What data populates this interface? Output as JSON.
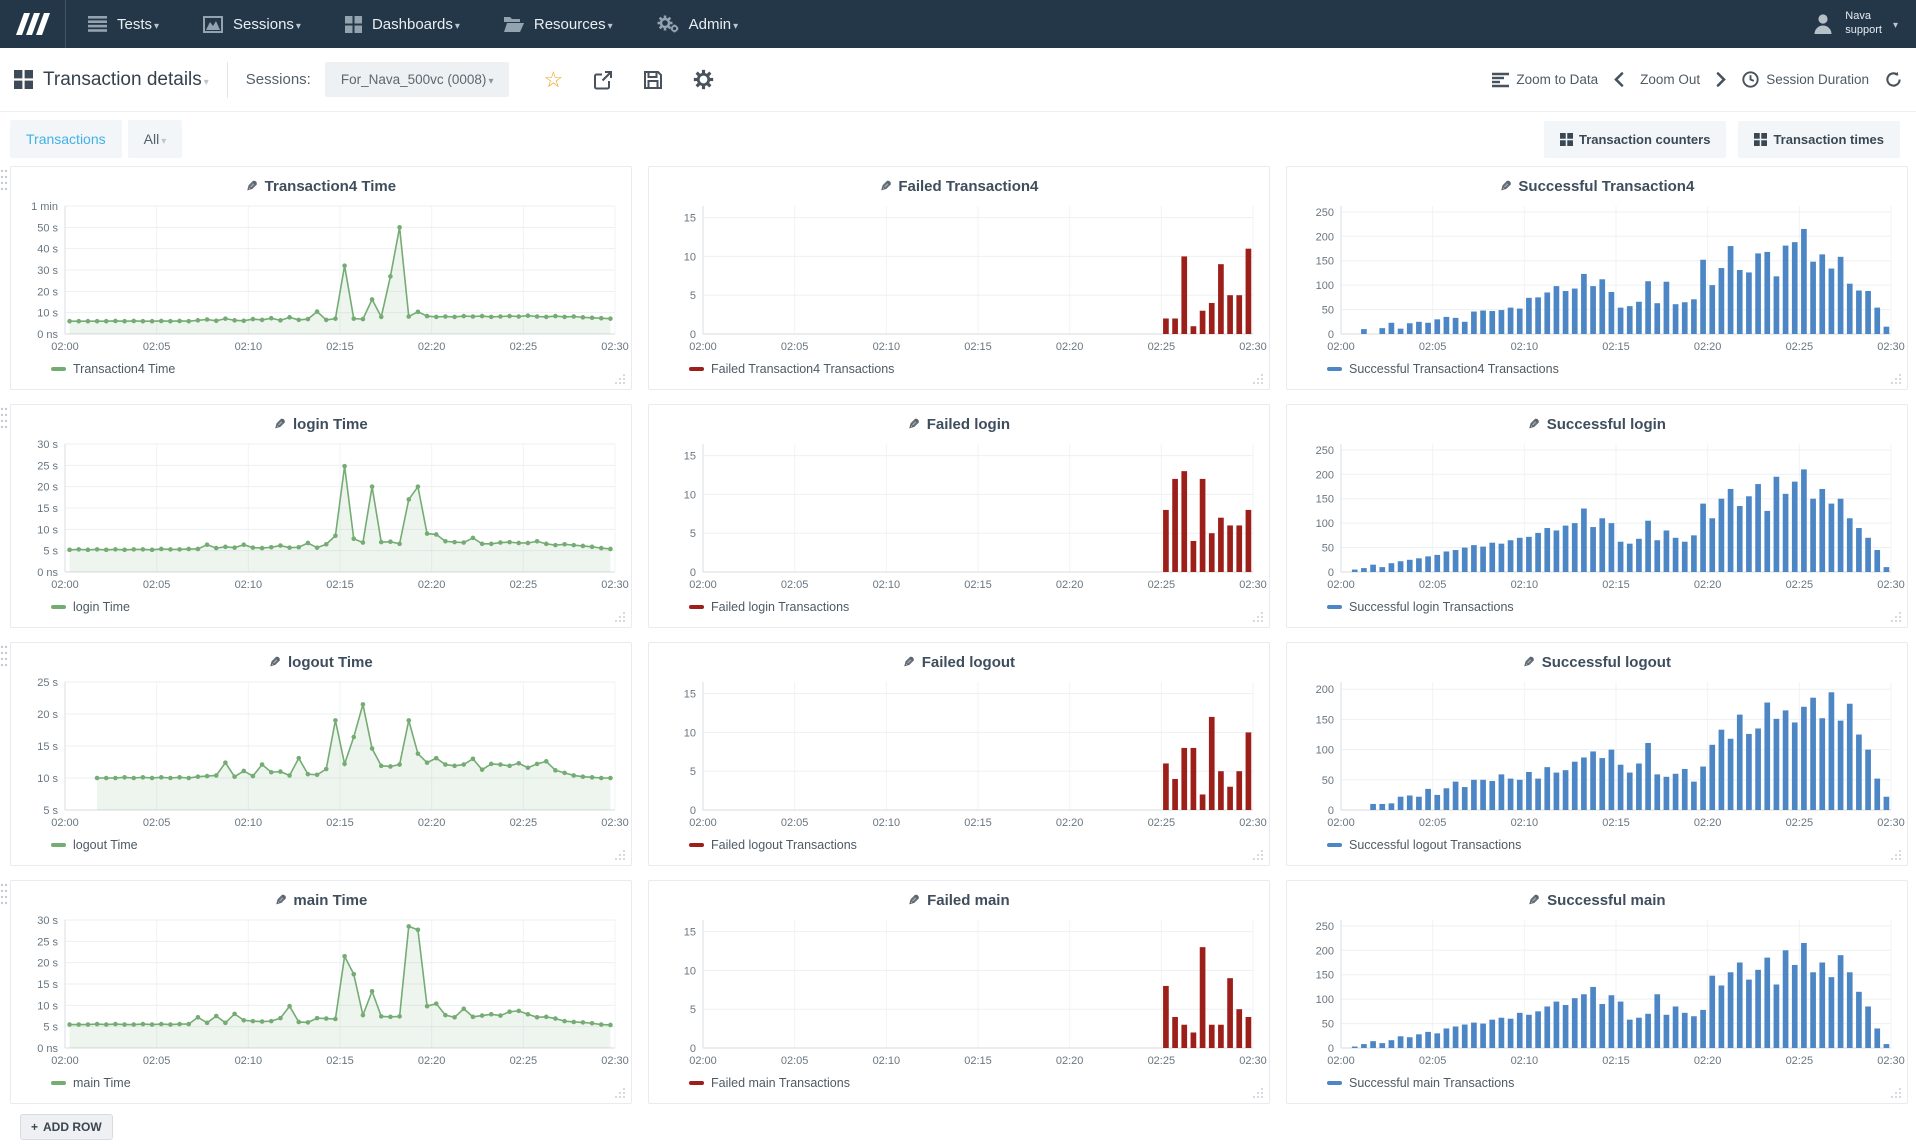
{
  "navbar": {
    "menus": [
      {
        "id": "tests",
        "label": "Tests"
      },
      {
        "id": "sessions",
        "label": "Sessions"
      },
      {
        "id": "dashboards",
        "label": "Dashboards"
      },
      {
        "id": "resources",
        "label": "Resources"
      },
      {
        "id": "admin",
        "label": "Admin"
      }
    ],
    "user": {
      "line1": "Nava",
      "line2": "support"
    }
  },
  "toolbar": {
    "title": "Transaction details",
    "sessions_label": "Sessions:",
    "session_value": "For_Nava_500vc (0008)",
    "zoom_to_data": "Zoom to Data",
    "zoom_out": "Zoom Out",
    "session_duration": "Session Duration"
  },
  "tabs": {
    "transactions": "Transactions",
    "filter_all": "All",
    "transaction_counters": "Transaction counters",
    "transaction_times": "Transaction times"
  },
  "footer": {
    "add_row": "ADD ROW"
  },
  "colors": {
    "green": "#74ac74",
    "red": "#9c1f1a",
    "blue": "#4d86c5",
    "navbar": "#243748"
  },
  "chart_data": [
    {
      "type": "line",
      "title": "Transaction4 Time",
      "legend": "Transaction4 Time",
      "color": "#74ac74",
      "ylim": [
        0,
        60
      ],
      "ytick_values": [
        60,
        50,
        40,
        30,
        20,
        10,
        0
      ],
      "ytick_labels": [
        "1 min",
        "50 s",
        "40 s",
        "30 s",
        "20 s",
        "10 s",
        "0 ns"
      ],
      "x_ticks": [
        "02:00",
        "02:05",
        "02:10",
        "02:15",
        "02:20",
        "02:25",
        "02:30"
      ],
      "interval_seconds": 30,
      "values": [
        6,
        6,
        6,
        6,
        6,
        6.1,
        6,
        6.1,
        6,
        6,
        6.1,
        6,
        6.1,
        6,
        6.4,
        6.8,
        6.2,
        7.2,
        6.4,
        6.2,
        7,
        6.6,
        7.4,
        6.4,
        7.8,
        6.6,
        7,
        10.5,
        6.6,
        7.2,
        32,
        7.2,
        7,
        16.2,
        8,
        27,
        50,
        8.2,
        10.4,
        8.4,
        8,
        8.2,
        8,
        8.4,
        8.2,
        8.4,
        8,
        8.2,
        8.4,
        8.2,
        8.6,
        8.2,
        8,
        8.4,
        8,
        8.2,
        7.8,
        7.6,
        7.4,
        7.2
      ]
    },
    {
      "type": "bar",
      "title": "Failed Transaction4",
      "legend": "Failed Transaction4 Transactions",
      "color": "#9c1f1a",
      "ylim": [
        0,
        16.5
      ],
      "ytick_values": [
        15,
        10,
        5,
        0
      ],
      "ytick_labels": [
        "15",
        "10",
        "5",
        "0"
      ],
      "x_ticks": [
        "02:00",
        "02:05",
        "02:10",
        "02:15",
        "02:20",
        "02:25",
        "02:30"
      ],
      "interval_seconds": 30,
      "values": [
        0,
        0,
        0,
        0,
        0,
        0,
        0,
        0,
        0,
        0,
        0,
        0,
        0,
        0,
        0,
        0,
        0,
        0,
        0,
        0,
        0,
        0,
        0,
        0,
        0,
        0,
        0,
        0,
        0,
        0,
        0,
        0,
        0,
        0,
        0,
        0,
        0,
        0,
        0,
        0,
        0,
        0,
        0,
        0,
        0,
        0,
        0,
        0,
        0,
        0,
        2,
        2,
        10,
        1,
        3,
        4,
        9,
        5,
        5,
        11
      ]
    },
    {
      "type": "bar",
      "title": "Successful Transaction4",
      "legend": "Successful Transaction4 Transactions",
      "color": "#4d86c5",
      "ylim": [
        0,
        262
      ],
      "ytick_values": [
        250,
        200,
        150,
        100,
        50,
        0
      ],
      "ytick_labels": [
        "250",
        "200",
        "150",
        "100",
        "50",
        "0"
      ],
      "x_ticks": [
        "02:00",
        "02:05",
        "02:10",
        "02:15",
        "02:20",
        "02:25",
        "02:30"
      ],
      "interval_seconds": 30,
      "values": [
        0,
        0,
        10,
        0,
        12,
        23,
        11,
        22,
        25,
        23,
        30,
        35,
        33,
        25,
        46,
        48,
        47,
        49,
        54,
        52,
        74,
        75,
        85,
        98,
        88,
        93,
        123,
        98,
        112,
        86,
        54,
        57,
        66,
        108,
        63,
        107,
        61,
        65,
        71,
        152,
        100,
        135,
        180,
        131,
        126,
        165,
        168,
        118,
        181,
        188,
        215,
        148,
        163,
        134,
        158,
        103,
        89,
        88,
        54,
        15
      ]
    },
    {
      "type": "line",
      "title": "login Time",
      "legend": "login Time",
      "color": "#74ac74",
      "ylim": [
        0,
        30
      ],
      "ytick_values": [
        30,
        25,
        20,
        15,
        10,
        5,
        0
      ],
      "ytick_labels": [
        "30 s",
        "25 s",
        "20 s",
        "15 s",
        "10 s",
        "5 s",
        "0 ns"
      ],
      "x_ticks": [
        "02:00",
        "02:05",
        "02:10",
        "02:15",
        "02:20",
        "02:25",
        "02:30"
      ],
      "interval_seconds": 30,
      "values": [
        5.2,
        5.3,
        5.2,
        5.3,
        5.2,
        5.3,
        5.2,
        5.3,
        5.3,
        5.2,
        5.4,
        5.3,
        5.3,
        5.4,
        5.4,
        6.4,
        5.6,
        5.9,
        5.7,
        6.4,
        5.7,
        5.6,
        5.8,
        6.2,
        5.7,
        5.8,
        6.8,
        5.7,
        6.5,
        8.5,
        24.8,
        7.8,
        6.9,
        20,
        7,
        7.1,
        6.6,
        17,
        20,
        9,
        8.8,
        7.2,
        7,
        6.9,
        8,
        6.6,
        6.6,
        6.9,
        7,
        6.8,
        6.8,
        7.2,
        6.6,
        6.3,
        6.5,
        6.3,
        6.1,
        5.9,
        5.6,
        5.4
      ]
    },
    {
      "type": "bar",
      "title": "Failed login",
      "legend": "Failed login Transactions",
      "color": "#9c1f1a",
      "ylim": [
        0,
        16.5
      ],
      "ytick_values": [
        15,
        10,
        5,
        0
      ],
      "ytick_labels": [
        "15",
        "10",
        "5",
        "0"
      ],
      "x_ticks": [
        "02:00",
        "02:05",
        "02:10",
        "02:15",
        "02:20",
        "02:25",
        "02:30"
      ],
      "interval_seconds": 30,
      "values": [
        0,
        0,
        0,
        0,
        0,
        0,
        0,
        0,
        0,
        0,
        0,
        0,
        0,
        0,
        0,
        0,
        0,
        0,
        0,
        0,
        0,
        0,
        0,
        0,
        0,
        0,
        0,
        0,
        0,
        0,
        0,
        0,
        0,
        0,
        0,
        0,
        0,
        0,
        0,
        0,
        0,
        0,
        0,
        0,
        0,
        0,
        0,
        0,
        0,
        0,
        8,
        12,
        13,
        4,
        12,
        5,
        7,
        6,
        6,
        8
      ]
    },
    {
      "type": "bar",
      "title": "Successful login",
      "legend": "Successful login Transactions",
      "color": "#4d86c5",
      "ylim": [
        0,
        262
      ],
      "ytick_values": [
        250,
        200,
        150,
        100,
        50,
        0
      ],
      "ytick_labels": [
        "250",
        "200",
        "150",
        "100",
        "50",
        "0"
      ],
      "x_ticks": [
        "02:00",
        "02:05",
        "02:10",
        "02:15",
        "02:20",
        "02:25",
        "02:30"
      ],
      "interval_seconds": 30,
      "values": [
        0,
        5,
        8,
        15,
        10,
        18,
        22,
        25,
        28,
        32,
        35,
        42,
        45,
        50,
        55,
        52,
        60,
        58,
        65,
        70,
        72,
        80,
        90,
        85,
        95,
        100,
        130,
        92,
        110,
        100,
        62,
        58,
        68,
        105,
        65,
        85,
        70,
        62,
        75,
        140,
        110,
        150,
        170,
        135,
        155,
        180,
        125,
        195,
        160,
        185,
        210,
        150,
        170,
        140,
        150,
        110,
        90,
        70,
        45,
        10
      ]
    },
    {
      "type": "line",
      "title": "logout Time",
      "legend": "logout Time",
      "color": "#74ac74",
      "ylim": [
        5,
        25
      ],
      "ytick_values": [
        25,
        20,
        15,
        10,
        5
      ],
      "ytick_labels": [
        "25 s",
        "20 s",
        "15 s",
        "10 s",
        "5 s"
      ],
      "x_ticks": [
        "02:00",
        "02:05",
        "02:10",
        "02:15",
        "02:20",
        "02:25",
        "02:30"
      ],
      "interval_seconds": 30,
      "values": [
        null,
        null,
        null,
        10,
        10,
        10,
        10.1,
        10,
        10.1,
        10,
        10.1,
        10,
        10.1,
        10,
        10.2,
        10.3,
        10.4,
        12.4,
        10.2,
        11.1,
        10.3,
        12.1,
        10.9,
        11,
        10.4,
        13.1,
        10.6,
        10.5,
        11.4,
        19,
        12.2,
        16.4,
        21.5,
        14.6,
        11.9,
        11.8,
        12.1,
        19,
        13.8,
        12.4,
        13.1,
        12.1,
        11.9,
        12.1,
        13,
        11.3,
        12.2,
        12.1,
        11.9,
        12.3,
        11.6,
        12.2,
        12.6,
        11.2,
        10.8,
        10.4,
        10.2,
        10.1,
        10,
        10
      ]
    },
    {
      "type": "bar",
      "title": "Failed logout",
      "legend": "Failed logout Transactions",
      "color": "#9c1f1a",
      "ylim": [
        0,
        16.5
      ],
      "ytick_values": [
        15,
        10,
        5,
        0
      ],
      "ytick_labels": [
        "15",
        "10",
        "5",
        "0"
      ],
      "x_ticks": [
        "02:00",
        "02:05",
        "02:10",
        "02:15",
        "02:20",
        "02:25",
        "02:30"
      ],
      "interval_seconds": 30,
      "values": [
        0,
        0,
        0,
        0,
        0,
        0,
        0,
        0,
        0,
        0,
        0,
        0,
        0,
        0,
        0,
        0,
        0,
        0,
        0,
        0,
        0,
        0,
        0,
        0,
        0,
        0,
        0,
        0,
        0,
        0,
        0,
        0,
        0,
        0,
        0,
        0,
        0,
        0,
        0,
        0,
        0,
        0,
        0,
        0,
        0,
        0,
        0,
        0,
        0,
        0,
        6,
        4,
        8,
        8,
        2,
        12,
        5,
        3,
        5,
        10
      ]
    },
    {
      "type": "bar",
      "title": "Successful logout",
      "legend": "Successful logout Transactions",
      "color": "#4d86c5",
      "ylim": [
        0,
        212
      ],
      "ytick_values": [
        200,
        150,
        100,
        50,
        0
      ],
      "ytick_labels": [
        "200",
        "150",
        "100",
        "50",
        "0"
      ],
      "x_ticks": [
        "02:00",
        "02:05",
        "02:10",
        "02:15",
        "02:20",
        "02:25",
        "02:30"
      ],
      "interval_seconds": 30,
      "values": [
        0,
        0,
        0,
        10,
        10,
        11,
        22,
        24,
        22,
        35,
        25,
        36,
        47,
        38,
        50,
        50,
        48,
        59,
        52,
        50,
        63,
        52,
        71,
        62,
        66,
        80,
        87,
        97,
        86,
        100,
        75,
        62,
        77,
        111,
        59,
        55,
        60,
        68,
        47,
        72,
        108,
        133,
        118,
        158,
        126,
        135,
        178,
        151,
        165,
        145,
        171,
        186,
        152,
        195,
        148,
        176,
        125,
        100,
        52,
        22
      ]
    },
    {
      "type": "line",
      "title": "main Time",
      "legend": "main Time",
      "color": "#74ac74",
      "ylim": [
        0,
        30
      ],
      "ytick_values": [
        30,
        25,
        20,
        15,
        10,
        5,
        0
      ],
      "ytick_labels": [
        "30 s",
        "25 s",
        "20 s",
        "15 s",
        "10 s",
        "5 s",
        "0 ns"
      ],
      "x_ticks": [
        "02:00",
        "02:05",
        "02:10",
        "02:15",
        "02:20",
        "02:25",
        "02:30"
      ],
      "interval_seconds": 30,
      "values": [
        5.5,
        5.5,
        5.5,
        5.6,
        5.5,
        5.6,
        5.5,
        5.5,
        5.6,
        5.5,
        5.6,
        5.5,
        5.6,
        5.6,
        7.2,
        5.9,
        7.5,
        5.9,
        8,
        6.5,
        6.3,
        6.2,
        6.3,
        7,
        9.8,
        6.1,
        6,
        7,
        6.9,
        6.8,
        21.5,
        17.3,
        7.7,
        13.3,
        7.4,
        7.3,
        7.4,
        28.5,
        27.7,
        9.8,
        10.4,
        7.7,
        7.2,
        9.2,
        7.3,
        7.6,
        7.9,
        7.6,
        8.5,
        8.7,
        7.9,
        7.2,
        7.3,
        6.9,
        6.3,
        6.1,
        6,
        5.8,
        5.5,
        5.4
      ]
    },
    {
      "type": "bar",
      "title": "Failed main",
      "legend": "Failed main Transactions",
      "color": "#9c1f1a",
      "ylim": [
        0,
        16.5
      ],
      "ytick_values": [
        15,
        10,
        5,
        0
      ],
      "ytick_labels": [
        "15",
        "10",
        "5",
        "0"
      ],
      "x_ticks": [
        "02:00",
        "02:05",
        "02:10",
        "02:15",
        "02:20",
        "02:25",
        "02:30"
      ],
      "interval_seconds": 30,
      "values": [
        0,
        0,
        0,
        0,
        0,
        0,
        0,
        0,
        0,
        0,
        0,
        0,
        0,
        0,
        0,
        0,
        0,
        0,
        0,
        0,
        0,
        0,
        0,
        0,
        0,
        0,
        0,
        0,
        0,
        0,
        0,
        0,
        0,
        0,
        0,
        0,
        0,
        0,
        0,
        0,
        0,
        0,
        0,
        0,
        0,
        0,
        0,
        0,
        0,
        0,
        8,
        4,
        3,
        2,
        13,
        3,
        3,
        9,
        5,
        4
      ]
    },
    {
      "type": "bar",
      "title": "Successful main",
      "legend": "Successful main Transactions",
      "color": "#4d86c5",
      "ylim": [
        0,
        262
      ],
      "ytick_values": [
        250,
        200,
        150,
        100,
        50,
        0
      ],
      "ytick_labels": [
        "250",
        "200",
        "150",
        "100",
        "50",
        "0"
      ],
      "x_ticks": [
        "02:00",
        "02:05",
        "02:10",
        "02:15",
        "02:20",
        "02:25",
        "02:30"
      ],
      "interval_seconds": 30,
      "values": [
        0,
        3,
        8,
        14,
        10,
        16,
        24,
        22,
        28,
        33,
        30,
        40,
        44,
        48,
        52,
        50,
        58,
        62,
        60,
        72,
        68,
        75,
        85,
        95,
        88,
        102,
        110,
        125,
        90,
        108,
        95,
        58,
        62,
        70,
        110,
        68,
        85,
        72,
        65,
        78,
        148,
        128,
        155,
        175,
        140,
        160,
        185,
        130,
        200,
        170,
        215,
        155,
        175,
        145,
        190,
        155,
        115,
        85,
        40,
        8
      ]
    }
  ]
}
